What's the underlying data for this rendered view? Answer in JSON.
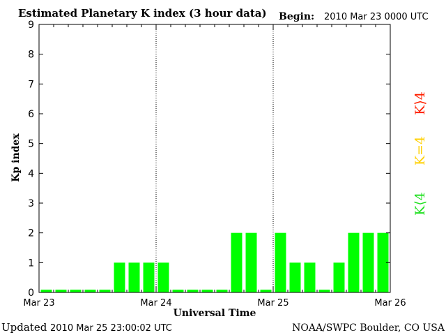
{
  "header": {
    "title": "Estimated Planetary K index (3 hour data)",
    "begin_label": "Begin:",
    "begin_value": "2010 Mar 23 0000 UTC"
  },
  "footer": {
    "updated_label": "Updated",
    "updated_value": "2010 Mar 25 23:00:02 UTC",
    "source": "NOAA/SWPC Boulder, CO USA"
  },
  "legend": {
    "greater": {
      "text": "K⟩4",
      "color": "#ff2000"
    },
    "equal": {
      "text": "K=4",
      "color": "#ffd000"
    },
    "less": {
      "text": "K⟨4",
      "color": "#22e022"
    }
  },
  "chart_data": {
    "type": "bar",
    "title": "Estimated Planetary K index (3 hour data)",
    "xlabel": "Universal Time",
    "ylabel": "Kp index",
    "ylim": [
      0,
      9
    ],
    "yticks": [
      "0",
      "1",
      "2",
      "3",
      "4",
      "5",
      "6",
      "7",
      "8",
      "9"
    ],
    "x_day_labels": [
      "Mar 23",
      "Mar 24",
      "Mar 25",
      "Mar 26"
    ],
    "interval_hours": 3,
    "values": [
      0,
      0,
      0,
      0,
      0,
      1,
      1,
      1,
      1,
      0,
      0,
      0,
      0,
      2,
      2,
      0,
      2,
      1,
      1,
      0,
      1,
      2,
      2,
      2
    ],
    "bar_color": "#00ff00",
    "day_separators": "dotted"
  }
}
